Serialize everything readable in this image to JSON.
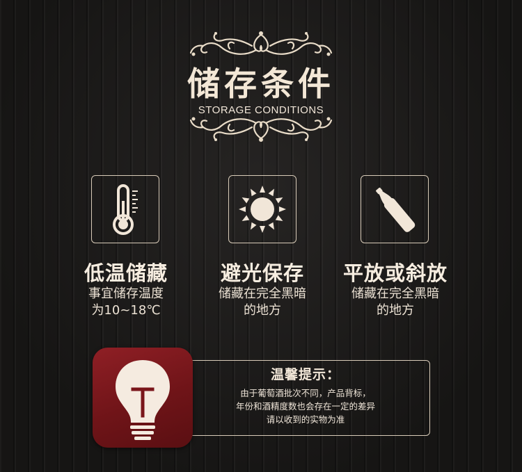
{
  "header": {
    "title_cn": "储存条件",
    "title_en": "STORAGE CONDITIONS"
  },
  "conditions": [
    {
      "icon": "thermometer-icon",
      "title": "低温储藏",
      "lines": [
        "事宜储存温度",
        "为10~18℃"
      ]
    },
    {
      "icon": "sun-icon",
      "title": "避光保存",
      "lines": [
        "储藏在完全黑暗",
        "的地方"
      ]
    },
    {
      "icon": "wine-bottle-icon",
      "title": "平放或斜放",
      "lines": [
        "储藏在完全黑暗",
        "的地方"
      ]
    }
  ],
  "tip": {
    "icon": "lightbulb-icon",
    "title": "温馨提示：",
    "lines": [
      "由于葡萄酒批次不同，产品背标，",
      "年份和酒精度数也会存在一定的差异",
      "请以收到的实物为准"
    ]
  },
  "colors": {
    "background": "#1b1a19",
    "cream": "#f1e6d8",
    "badge_red": "#7a161b"
  }
}
